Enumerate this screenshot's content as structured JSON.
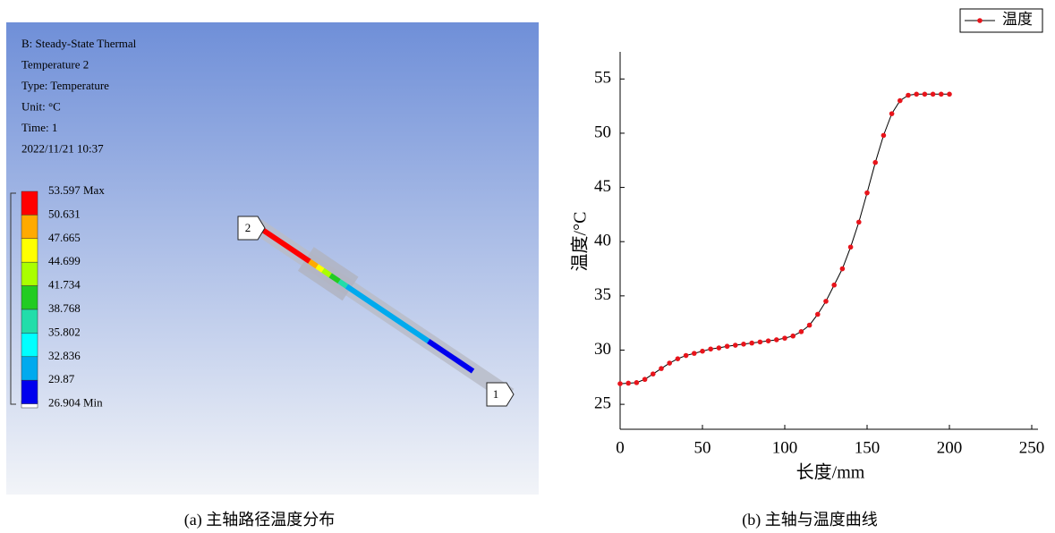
{
  "panel_a": {
    "info": [
      "B: Steady-State Thermal",
      "Temperature 2",
      "Type: Temperature",
      "Unit: °C",
      "Time: 1",
      "2022/11/21 10:37"
    ],
    "legend": {
      "labels": [
        "53.597 Max",
        "50.631",
        "47.665",
        "44.699",
        "41.734",
        "38.768",
        "35.802",
        "32.836",
        "29.87",
        "26.904 Min"
      ],
      "colors": [
        "#ff0000",
        "#ffaa00",
        "#ffff00",
        "#aaff00",
        "#22cc22",
        "#22ddaa",
        "#00ffff",
        "#00aaee",
        "#0000ee"
      ]
    },
    "path_labels": [
      "2",
      "1"
    ]
  },
  "captions": [
    "(a)  主轴路径温度分布",
    "(b)  主轴与温度曲线"
  ],
  "chart_data": {
    "type": "line",
    "xlabel": "长度/mm",
    "ylabel": "温度/°C",
    "x": [
      0,
      5,
      10,
      15,
      20,
      25,
      30,
      35,
      40,
      45,
      50,
      55,
      60,
      65,
      70,
      75,
      80,
      85,
      90,
      95,
      100,
      105,
      110,
      115,
      120,
      125,
      130,
      135,
      140,
      145,
      150,
      155,
      160,
      165,
      170,
      175,
      180,
      185,
      190,
      195,
      200
    ],
    "series": [
      {
        "name": "温度",
        "color": "#e8141b",
        "values": [
          26.9,
          26.95,
          27.0,
          27.3,
          27.8,
          28.3,
          28.8,
          29.2,
          29.5,
          29.7,
          29.9,
          30.1,
          30.2,
          30.35,
          30.45,
          30.55,
          30.65,
          30.75,
          30.85,
          30.95,
          31.1,
          31.3,
          31.7,
          32.3,
          33.3,
          34.5,
          36.0,
          37.5,
          39.5,
          41.8,
          44.5,
          47.3,
          49.8,
          51.8,
          53.0,
          53.5,
          53.6,
          53.6,
          53.6,
          53.6,
          53.6
        ]
      }
    ],
    "line_color": "#000000",
    "xlim": [
      0,
      250
    ],
    "xticks": [
      0,
      50,
      100,
      150,
      200,
      250
    ],
    "ylim": [
      22.7,
      57.5
    ],
    "yticks": [
      25,
      30,
      35,
      40,
      45,
      50,
      55
    ],
    "legend": "upper right"
  }
}
